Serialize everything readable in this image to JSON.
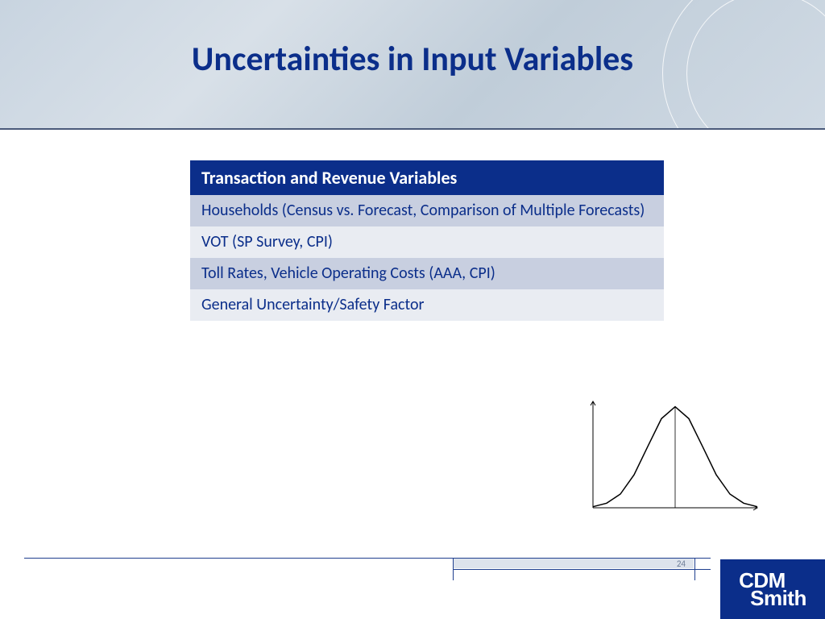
{
  "slide": {
    "title": "Uncertainties in Input Variables",
    "title_color": "#0b2e8a",
    "title_fontsize": 42,
    "page_number": "24"
  },
  "header": {
    "background_gradient": [
      "#c8d4e0",
      "#d8e0e8",
      "#c0cdd9",
      "#d0dae4"
    ],
    "arc_color": "#ffffff",
    "underline_color": "#4a5a7a"
  },
  "table": {
    "header": {
      "text": "Transaction  and Revenue Variables",
      "bg": "#0b2e8a",
      "color": "#ffffff",
      "fontsize": 22
    },
    "rows": [
      {
        "text": "Households (Census vs. Forecast, Comparison of Multiple Forecasts)",
        "bg": "#c8cfe0",
        "color": "#0b2e8a"
      },
      {
        "text": "VOT (SP Survey, CPI)",
        "bg": "#e9ecf2",
        "color": "#0b2e8a"
      },
      {
        "text": "Toll Rates, Vehicle Operating Costs (AAA, CPI)",
        "bg": "#c8cfe0",
        "color": "#0b2e8a"
      },
      {
        "text": "General Uncertainty/Safety Factor",
        "bg": "#e9ecf2",
        "color": "#0b2e8a"
      }
    ]
  },
  "chart": {
    "type": "line",
    "description": "normal-distribution-bell-curve",
    "axis_color": "#000000",
    "curve_color": "#000000",
    "curve_width": 1.5,
    "mean_line_color": "#000000",
    "background_color": "#ffffff",
    "x_range": [
      -3,
      3
    ],
    "points": [
      [
        -3.0,
        0.004
      ],
      [
        -2.5,
        0.018
      ],
      [
        -2.0,
        0.054
      ],
      [
        -1.5,
        0.13
      ],
      [
        -1.0,
        0.242
      ],
      [
        -0.5,
        0.352
      ],
      [
        0.0,
        0.399
      ],
      [
        0.5,
        0.352
      ],
      [
        1.0,
        0.242
      ],
      [
        1.5,
        0.13
      ],
      [
        2.0,
        0.054
      ],
      [
        2.5,
        0.018
      ],
      [
        3.0,
        0.004
      ]
    ],
    "y_max": 0.42
  },
  "footer": {
    "line_color": "#1f3f8f",
    "cell_bg": "#dde3ec",
    "page_color": "#6a7a94"
  },
  "logo": {
    "line1": "CDM",
    "line2": "Smith",
    "bg": "#0b2e8a",
    "color": "#ffffff"
  }
}
